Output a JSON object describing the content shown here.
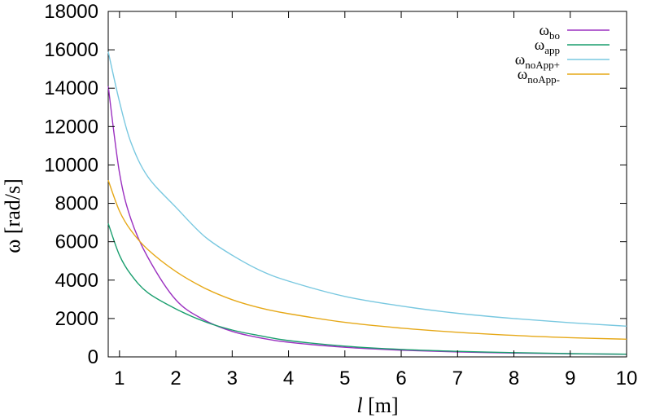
{
  "chart_data": {
    "type": "line",
    "title": "",
    "xlabel": {
      "italic": "l",
      "rest": " [m]"
    },
    "ylabel": "ω [rad/s]",
    "xlim": [
      0.8,
      10
    ],
    "ylim": [
      0,
      18000
    ],
    "x_ticks": [
      1,
      2,
      3,
      4,
      5,
      6,
      7,
      8,
      9,
      10
    ],
    "y_ticks": [
      0,
      2000,
      4000,
      6000,
      8000,
      10000,
      12000,
      14000,
      16000,
      18000
    ],
    "grid": false,
    "legend_position": "top-right",
    "series": [
      {
        "name": "ω_bo",
        "label_main": "ω",
        "label_sub": "bo",
        "color": "#9b30c0",
        "x": [
          0.8,
          1.0,
          1.2,
          1.5,
          2.0,
          2.5,
          3.0,
          3.5,
          4.0,
          5.0,
          6.0,
          7.0,
          8.0,
          9.0,
          10.0
        ],
        "y": [
          14100,
          9600,
          7200,
          5200,
          2970,
          1930,
          1330,
          990,
          760,
          500,
          350,
          260,
          200,
          160,
          140
        ]
      },
      {
        "name": "ω_app",
        "label_main": "ω",
        "label_sub": "app",
        "color": "#1a9e6e",
        "x": [
          0.8,
          1.0,
          1.2,
          1.5,
          2.0,
          2.5,
          3.0,
          3.5,
          4.0,
          5.0,
          6.0,
          7.0,
          8.0,
          9.0,
          10.0
        ],
        "y": [
          6950,
          5300,
          4300,
          3350,
          2500,
          1850,
          1400,
          1100,
          850,
          560,
          390,
          290,
          220,
          170,
          140
        ]
      },
      {
        "name": "ω_noApp+",
        "label_main": "ω",
        "label_sub": "noApp+",
        "color": "#79c8e0",
        "x": [
          0.8,
          1.0,
          1.2,
          1.5,
          2.0,
          2.5,
          3.0,
          3.5,
          4.0,
          5.0,
          6.0,
          7.0,
          8.0,
          9.0,
          10.0
        ],
        "y": [
          15900,
          13300,
          11200,
          9400,
          7800,
          6300,
          5300,
          4500,
          3950,
          3150,
          2650,
          2270,
          2000,
          1780,
          1600
        ]
      },
      {
        "name": "ω_noApp-",
        "label_main": "ω",
        "label_sub": "noApp-",
        "color": "#e6a817",
        "x": [
          0.8,
          1.0,
          1.2,
          1.5,
          2.0,
          2.5,
          3.0,
          3.5,
          4.0,
          5.0,
          6.0,
          7.0,
          8.0,
          9.0,
          10.0
        ],
        "y": [
          9200,
          7600,
          6600,
          5600,
          4450,
          3600,
          2980,
          2550,
          2250,
          1800,
          1500,
          1280,
          1120,
          1000,
          920
        ]
      }
    ]
  }
}
